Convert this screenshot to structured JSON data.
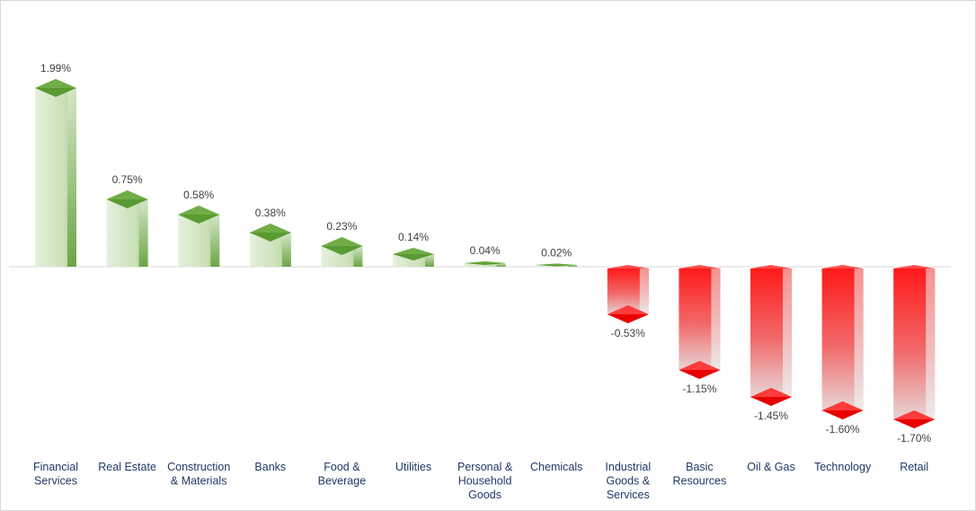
{
  "chart_data": {
    "type": "bar",
    "title": "",
    "xlabel": "",
    "ylabel": "",
    "categories": [
      [
        "Financial",
        "Services"
      ],
      [
        "Real Estate"
      ],
      [
        "Construction",
        "& Materials"
      ],
      [
        "Banks"
      ],
      [
        "Food &",
        "Beverage"
      ],
      [
        "Utilities"
      ],
      [
        "Personal &",
        "Household",
        "Goods"
      ],
      [
        "Chemicals"
      ],
      [
        "Industrial",
        "Goods &",
        "Services"
      ],
      [
        "Basic",
        "Resources"
      ],
      [
        "Oil & Gas"
      ],
      [
        "Technology"
      ],
      [
        "Retail"
      ]
    ],
    "values": [
      1.99,
      0.75,
      0.58,
      0.38,
      0.23,
      0.14,
      0.04,
      0.02,
      -0.53,
      -1.15,
      -1.45,
      -1.6,
      -1.7
    ],
    "value_labels": [
      "1.99%",
      "0.75%",
      "0.58%",
      "0.38%",
      "0.23%",
      "0.14%",
      "0.04%",
      "0.02%",
      "-0.53%",
      "-1.15%",
      "-1.45%",
      "-1.60%",
      "-1.70%"
    ],
    "ylim": [
      -1.7,
      1.99
    ],
    "grid": false,
    "legend": "none",
    "colors": {
      "positive": "#70ad47",
      "positive_dark": "#5a9a32",
      "negative": "#ff0000",
      "negative_dark": "#e60000",
      "axis": "#d9d9d9",
      "category_text": "#1f3864",
      "value_text": "#404040"
    }
  }
}
